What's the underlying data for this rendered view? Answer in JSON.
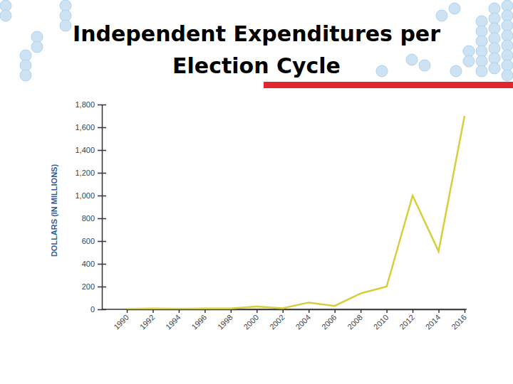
{
  "chart_data": {
    "type": "line",
    "title": "Independent Expenditures per Election Cycle",
    "y_label": "DOLLARS (IN MILLIONS)",
    "categories": [
      "1990",
      "1992",
      "1994",
      "1996",
      "1998",
      "2000",
      "2002",
      "2004",
      "2006",
      "2008",
      "2010",
      "2012",
      "2014",
      "2016"
    ],
    "values": [
      3,
      8,
      4,
      8,
      8,
      25,
      10,
      60,
      30,
      140,
      200,
      1000,
      510,
      1700
    ],
    "color": "#d6cf3c",
    "ylim": [
      0,
      1800
    ],
    "yticks": [
      0,
      200,
      400,
      600,
      800,
      {
        "value": 1000,
        "label": "1,000"
      },
      {
        "value": 1200,
        "label": "1,200"
      },
      {
        "value": 1400,
        "label": "1,400"
      },
      {
        "value": 1600,
        "label": "1,600"
      },
      {
        "value": 1800,
        "label": "1,800"
      }
    ],
    "grid": false
  }
}
